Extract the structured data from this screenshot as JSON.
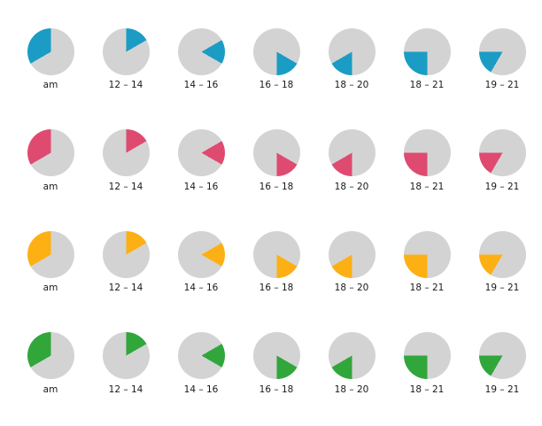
{
  "page": {
    "background_color": "#ffffff",
    "title": ""
  },
  "chart_data": {
    "type": "pie",
    "subtype": "clock-face small multiples",
    "title": "",
    "grid": {
      "rows": 4,
      "columns": 7
    },
    "legend_position": "none",
    "pie_background_color": "#d3d3d3",
    "label_color": "#1a1a1a",
    "columns": [
      {
        "label": "am",
        "clock_start_hour": 8,
        "clock_end_hour": 12,
        "start_angle_deg": 240,
        "end_angle_deg": 360
      },
      {
        "label": "12 – 14",
        "clock_start_hour": 12,
        "clock_end_hour": 14,
        "start_angle_deg": 0,
        "end_angle_deg": 60
      },
      {
        "label": "14 – 16",
        "clock_start_hour": 14,
        "clock_end_hour": 16,
        "start_angle_deg": 60,
        "end_angle_deg": 120
      },
      {
        "label": "16 – 18",
        "clock_start_hour": 16,
        "clock_end_hour": 18,
        "start_angle_deg": 120,
        "end_angle_deg": 180
      },
      {
        "label": "18 – 20",
        "clock_start_hour": 18,
        "clock_end_hour": 20,
        "start_angle_deg": 180,
        "end_angle_deg": 240
      },
      {
        "label": "18 – 21",
        "clock_start_hour": 18,
        "clock_end_hour": 21,
        "start_angle_deg": 180,
        "end_angle_deg": 270
      },
      {
        "label": "19 – 21",
        "clock_start_hour": 19,
        "clock_end_hour": 21,
        "start_angle_deg": 210,
        "end_angle_deg": 270
      }
    ],
    "series": [
      {
        "name": "row-1-blue",
        "color": "#1a9cc5"
      },
      {
        "name": "row-2-pink",
        "color": "#df4a71"
      },
      {
        "name": "row-3-orange",
        "color": "#fdb013"
      },
      {
        "name": "row-4-green",
        "color": "#30a63b"
      }
    ]
  }
}
